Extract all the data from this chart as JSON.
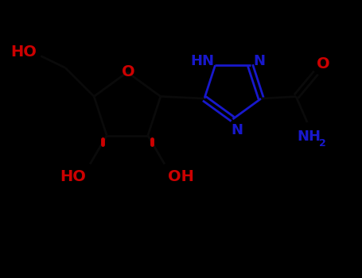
{
  "bg_color": "#000000",
  "bond_color_black": "#0a0a0a",
  "bond_color_blue": "#1818cc",
  "bond_color_red": "#cc0000",
  "atom_color_blue": "#1818cc",
  "atom_color_red": "#cc0000",
  "linewidth": 2.0,
  "font_size_large": 14,
  "font_size_small": 10,
  "font_size_tiny": 8,
  "xlim": [
    0,
    9.1
  ],
  "ylim": [
    0,
    7.0
  ],
  "figw": 4.55,
  "figh": 3.5,
  "dpi": 100
}
